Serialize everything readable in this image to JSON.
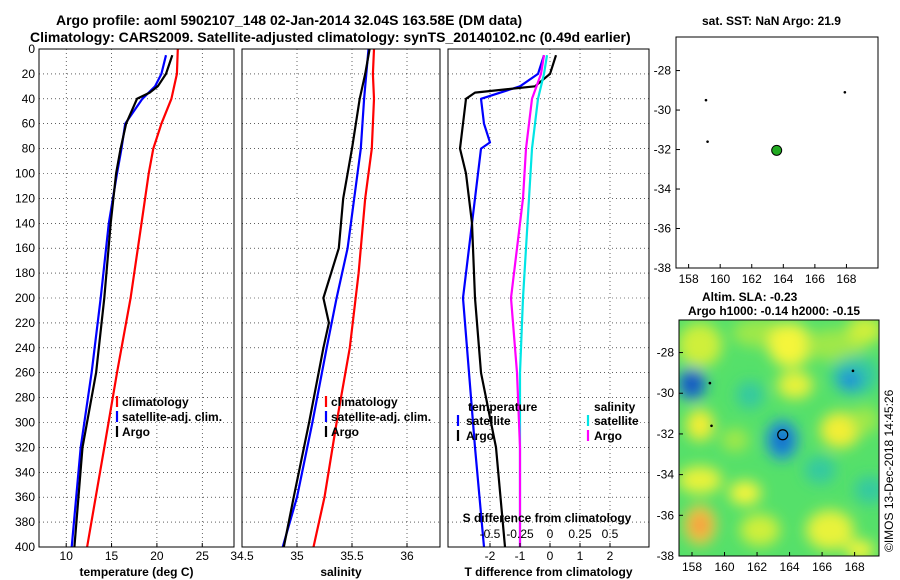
{
  "title_line1": "Argo profile: aoml 5902107_148 02-Jan-2014 32.04S 163.58E (DM data)",
  "title_line2": "Climatology: CARS2009. Satellite-adjusted climatology: synTS_20140102.nc (0.49d earlier)",
  "sst_title": "sat. SST: NaN Argo: 21.9",
  "sla_title_line1": "Altim. SLA: -0.23",
  "sla_title_line2": "Argo h1000: -0.14 h2000: -0.15",
  "credit": "©IMOS 13-Dec-2018 14:45:26",
  "colors": {
    "climatology": "#ff0000",
    "satellite": "#0000ff",
    "argo": "#000000",
    "salinity_sat": "#00e5e5",
    "salinity_argo": "#ff00ff",
    "float_marker": "#22aa22"
  },
  "chart_data": [
    {
      "type": "line",
      "name": "temperature-profile",
      "xlabel": "temperature (deg C)",
      "ylabel": "",
      "xlim": [
        7,
        28.5
      ],
      "ylim": [
        400,
        0
      ],
      "x_ticks": [
        "10",
        "15",
        "20",
        "25"
      ],
      "x_tick_values": [
        10,
        15,
        20,
        25
      ],
      "y_ticks": [
        "0",
        "20",
        "40",
        "60",
        "80",
        "100",
        "120",
        "140",
        "160",
        "180",
        "200",
        "220",
        "240",
        "260",
        "280",
        "300",
        "320",
        "340",
        "360",
        "380",
        "400"
      ],
      "grid": true,
      "legend_position": "lower-right",
      "legend": [
        "climatology",
        "satellite-adj. clim.",
        "Argo"
      ],
      "series": [
        {
          "name": "climatology",
          "depth": [
            0,
            20,
            40,
            60,
            80,
            100,
            140,
            200,
            260,
            320,
            400
          ],
          "values": [
            22.3,
            22.2,
            21.6,
            20.5,
            19.6,
            19.1,
            18.3,
            17.1,
            15.6,
            14.2,
            12.3
          ]
        },
        {
          "name": "satellite-adj. clim.",
          "depth": [
            5,
            20,
            30,
            40,
            60,
            80,
            100,
            140,
            200,
            260,
            320,
            400
          ],
          "values": [
            21.0,
            20.5,
            19.8,
            18.4,
            16.5,
            16.1,
            15.6,
            14.7,
            13.8,
            12.8,
            11.6,
            10.6
          ]
        },
        {
          "name": "Argo",
          "depth": [
            5,
            20,
            30,
            35,
            40,
            60,
            80,
            100,
            140,
            200,
            260,
            320,
            400
          ],
          "values": [
            21.7,
            21.0,
            20.1,
            19.2,
            17.8,
            16.6,
            16.0,
            15.5,
            14.9,
            14.2,
            13.3,
            11.8,
            10.9
          ]
        }
      ]
    },
    {
      "type": "line",
      "name": "salinity-profile",
      "xlabel": "salinity",
      "ylabel": "",
      "xlim": [
        34.5,
        36.3
      ],
      "ylim": [
        400,
        0
      ],
      "x_ticks": [
        "34.5",
        "35",
        "35.5",
        "36"
      ],
      "x_tick_values": [
        34.5,
        35,
        35.5,
        36
      ],
      "grid": true,
      "legend_position": "lower-right",
      "legend": [
        "climatology",
        "satellite-adj. clim.",
        "Argo"
      ],
      "series": [
        {
          "name": "climatology",
          "depth": [
            0,
            20,
            40,
            80,
            120,
            180,
            240,
            300,
            360,
            400
          ],
          "values": [
            35.7,
            35.69,
            35.7,
            35.68,
            35.62,
            35.56,
            35.48,
            35.36,
            35.25,
            35.15
          ]
        },
        {
          "name": "satellite-adj. clim.",
          "depth": [
            0,
            20,
            40,
            80,
            120,
            160,
            200,
            240,
            300,
            360,
            400
          ],
          "values": [
            35.65,
            35.63,
            35.61,
            35.58,
            35.52,
            35.46,
            35.36,
            35.27,
            35.14,
            35.0,
            34.87
          ]
        },
        {
          "name": "Argo",
          "depth": [
            0,
            20,
            40,
            80,
            120,
            160,
            200,
            220,
            240,
            300,
            360,
            400
          ],
          "values": [
            35.66,
            35.62,
            35.57,
            35.5,
            35.42,
            35.38,
            35.24,
            35.29,
            35.24,
            35.11,
            34.97,
            34.88
          ]
        }
      ]
    },
    {
      "type": "line",
      "name": "difference-profile",
      "xlabel": "T difference from climatology",
      "xlabel2": "S difference from climatology",
      "xlim": [
        -3.4,
        3.3
      ],
      "ylim": [
        400,
        0
      ],
      "x_ticks": [
        "-2",
        "-1",
        "0",
        "1",
        "2"
      ],
      "x_tick_values": [
        -2,
        -1,
        0,
        1,
        2
      ],
      "x2_ticks": [
        "-0.5",
        "-0.25",
        "0",
        "0.25",
        "0.5"
      ],
      "x2_tick_values": [
        -2,
        -1,
        0,
        1,
        2
      ],
      "grid": true,
      "legend_temperature_title": "temperature",
      "legend_salinity_title": "salinity",
      "legend_temperature": [
        "satellite",
        "Argo"
      ],
      "legend_salinity": [
        "satellite",
        "Argo"
      ],
      "series": [
        {
          "name": "T satellite",
          "depth": [
            5,
            20,
            30,
            40,
            60,
            75,
            80,
            100,
            140,
            200,
            260,
            320,
            400
          ],
          "values": [
            -0.2,
            -0.4,
            -1.0,
            -2.3,
            -2.2,
            -2.0,
            -2.3,
            -2.4,
            -2.6,
            -2.9,
            -2.7,
            -2.5,
            -2.2
          ]
        },
        {
          "name": "T Argo",
          "depth": [
            5,
            20,
            30,
            35,
            40,
            60,
            80,
            100,
            140,
            200,
            260,
            320,
            400
          ],
          "values": [
            0.2,
            0.0,
            -0.5,
            -2.5,
            -2.8,
            -2.9,
            -3.0,
            -2.8,
            -2.6,
            -2.5,
            -2.3,
            -1.8,
            -1.5
          ]
        },
        {
          "name": "S satellite",
          "depth": [
            5,
            20,
            40,
            80,
            120,
            200,
            260,
            320,
            400
          ],
          "values": [
            -0.1,
            -0.2,
            -0.4,
            -0.6,
            -0.7,
            -0.9,
            -1.0,
            -1.0,
            -1.0
          ]
        },
        {
          "name": "S Argo",
          "depth": [
            5,
            20,
            40,
            80,
            120,
            200,
            260,
            320,
            400
          ],
          "values": [
            -0.2,
            -0.3,
            -0.6,
            -0.8,
            -0.9,
            -1.3,
            -1.1,
            -1.0,
            -1.0
          ]
        }
      ]
    },
    {
      "type": "scatter",
      "name": "sst-map",
      "title": "sat. SST: NaN Argo: 21.9",
      "xlim": [
        157.2,
        170.0
      ],
      "ylim": [
        -38,
        -26.3
      ],
      "x_ticks": [
        "158",
        "160",
        "162",
        "164",
        "166",
        "168"
      ],
      "x_tick_values": [
        158,
        160,
        162,
        164,
        166,
        168
      ],
      "y_ticks": [
        "-28",
        "-30",
        "-32",
        "-34",
        "-36",
        "-38"
      ],
      "y_tick_values": [
        -28,
        -30,
        -32,
        -34,
        -36,
        -38
      ],
      "points": [
        {
          "lon": 159.1,
          "lat": -29.5,
          "kind": "dot"
        },
        {
          "lon": 159.2,
          "lat": -31.6,
          "kind": "dot"
        },
        {
          "lon": 167.9,
          "lat": -29.1,
          "kind": "dot"
        },
        {
          "lon": 163.58,
          "lat": -32.04,
          "kind": "float"
        }
      ]
    },
    {
      "type": "heatmap",
      "name": "sla-map",
      "title": "Altim. SLA: -0.23",
      "xlim": [
        157.2,
        169.5
      ],
      "ylim": [
        -38,
        -26.4
      ],
      "x_ticks": [
        "158",
        "160",
        "162",
        "164",
        "166",
        "168"
      ],
      "x_tick_values": [
        158,
        160,
        162,
        164,
        166,
        168
      ],
      "y_ticks": [
        "-28",
        "-30",
        "-32",
        "-34",
        "-36",
        "-38"
      ],
      "y_tick_values": [
        -28,
        -30,
        -32,
        -34,
        -36,
        -38
      ],
      "points": [
        {
          "lon": 159.1,
          "lat": -29.5,
          "kind": "dot"
        },
        {
          "lon": 159.2,
          "lat": -31.6,
          "kind": "dot"
        },
        {
          "lon": 167.9,
          "lat": -28.9,
          "kind": "dot"
        },
        {
          "lon": 163.58,
          "lat": -32.04,
          "kind": "float"
        }
      ]
    }
  ]
}
